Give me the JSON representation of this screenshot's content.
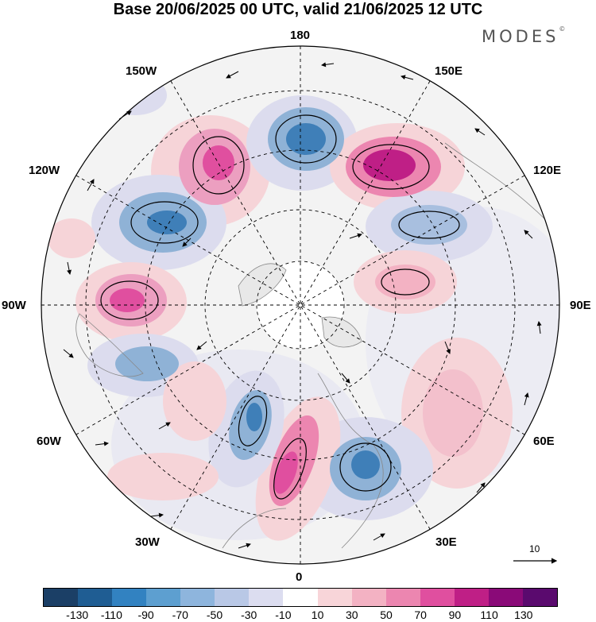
{
  "header": {
    "title": "Base 20/06/2025 00 UTC, valid 21/06/2025 12 UTC",
    "brand": "MODES",
    "brand_mark": "©"
  },
  "map": {
    "projection": "north polar stereographic",
    "longitude_labels": {
      "top": "180",
      "bottom": "0",
      "left": "90W",
      "right": "90E",
      "upper_left_outer": "150W",
      "upper_left": "120W",
      "lower_left": "60W",
      "lower_left_inner": "30W",
      "upper_right_outer": "150E",
      "upper_right": "120E",
      "lower_right": "60E",
      "lower_right_inner": "30E"
    },
    "reference_vector": {
      "label": "10"
    },
    "colors": {
      "negative_strong": "#3f7fb8",
      "negative_mid": "#8fb2d6",
      "negative_weak": "#dcdcee",
      "positive_weak": "#f6d4d8",
      "positive_mid": "#ec8fb4",
      "positive_strong": "#c0207e",
      "land_neutral": "#eeeeee",
      "coastline": "#888888"
    }
  },
  "colorbar": {
    "ticks": [
      "-130",
      "-110",
      "-90",
      "-70",
      "-50",
      "-30",
      "-10",
      "10",
      "30",
      "50",
      "70",
      "90",
      "110",
      "130"
    ],
    "colors": [
      "#1b3f66",
      "#1f5d93",
      "#3282c1",
      "#5d9fd0",
      "#8eb5dd",
      "#b9c8e6",
      "#dcddf0",
      "#ffffff",
      "#f8d5d9",
      "#f3b2c3",
      "#ec86b0",
      "#e04f9f",
      "#bf1f86",
      "#8a0a78",
      "#5a0a6e"
    ]
  }
}
